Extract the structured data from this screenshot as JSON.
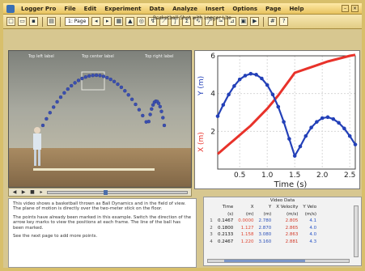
{
  "menubar": {
    "app_name": "Logger Pro",
    "items": [
      "File",
      "Edit",
      "Experiment",
      "Data",
      "Analyze",
      "Insert",
      "Options",
      "Page",
      "Help"
    ]
  },
  "toolbar": {
    "doc_title": "Basketball Shot with Logger Lite",
    "page_select": "1: Page"
  },
  "video": {
    "top_left_label": "Top left label",
    "top_center_label": "Top center label",
    "top_right_label": "Top right label",
    "ball_points": 42
  },
  "text_pane": {
    "paragraphs": [
      "This video shows a basketball thrown as Ball Dynamics and in the field of view. The plane of motion is directly over the two-meter stick on the floor.",
      "The points have already been marked in this example. Switch the direction of the arrow key marks to view the positions at each frame. The line of the ball has been marked.",
      "See the next page to add more points."
    ]
  },
  "table": {
    "title": "Video Data",
    "headers": [
      "Time",
      "X",
      "Y",
      "X Velocity",
      "Y Velo"
    ],
    "units": [
      "(s)",
      "(m)",
      "(m)",
      "(m/s)",
      "(m/s)"
    ],
    "rows": [
      {
        "idx": "1",
        "t": "0.1467",
        "x": "0.0000",
        "y": "2.780",
        "vx": "2.805",
        "vy": "4.1"
      },
      {
        "idx": "2",
        "t": "0.1800",
        "x": "1.127",
        "y": "2.870",
        "vx": "2.865",
        "vy": "4.0"
      },
      {
        "idx": "3",
        "t": "0.2133",
        "x": "1.158",
        "y": "3.080",
        "vx": "2.863",
        "vy": "4.0"
      },
      {
        "idx": "4",
        "t": "0.2467",
        "x": "1.220",
        "y": "3.160",
        "vx": "2.881",
        "vy": "4.3"
      }
    ]
  },
  "chart_data": {
    "type": "line",
    "xlabel": "Time (s)",
    "ylabel_left": "X (m)",
    "ylabel_right": "Y (m)",
    "xticks": [
      "0.5",
      "1.0",
      "1.5",
      "2.0",
      "2.5"
    ],
    "yticks": [
      "2",
      "4",
      "6"
    ],
    "xlim": [
      0.1,
      2.6
    ],
    "ylim": [
      0,
      6
    ],
    "grid": true,
    "series": [
      {
        "color": "#e8322a",
        "x": [
          0.1,
          0.2,
          0.3,
          0.4,
          0.5,
          0.6,
          0.7,
          0.8,
          0.9,
          1.0,
          1.1,
          1.2,
          1.3,
          1.4,
          1.5,
          1.7,
          1.9,
          2.1,
          2.3,
          2.5,
          2.6
        ],
        "y": [
          0.8,
          1.05,
          1.3,
          1.55,
          1.8,
          2.05,
          2.3,
          2.6,
          2.9,
          3.2,
          3.55,
          3.9,
          4.3,
          4.7,
          5.1,
          5.3,
          5.5,
          5.7,
          5.85,
          6.0,
          6.05
        ]
      },
      {
        "color": "#2340b8",
        "x": [
          0.1,
          0.2,
          0.3,
          0.4,
          0.5,
          0.6,
          0.7,
          0.8,
          0.9,
          1.0,
          1.1,
          1.2,
          1.3,
          1.4,
          1.5,
          1.6,
          1.7,
          1.8,
          1.9,
          2.0,
          2.1,
          2.2,
          2.3,
          2.4,
          2.5,
          2.6
        ],
        "y": [
          2.8,
          3.4,
          3.95,
          4.4,
          4.75,
          4.95,
          5.05,
          5.0,
          4.8,
          4.45,
          3.95,
          3.3,
          2.5,
          1.6,
          0.7,
          1.2,
          1.75,
          2.2,
          2.5,
          2.7,
          2.75,
          2.65,
          2.45,
          2.15,
          1.75,
          1.3
        ]
      }
    ]
  },
  "colors": {
    "accent_gold": "#d8bf6b",
    "x_series": "#e8322a",
    "y_series": "#2340b8"
  }
}
